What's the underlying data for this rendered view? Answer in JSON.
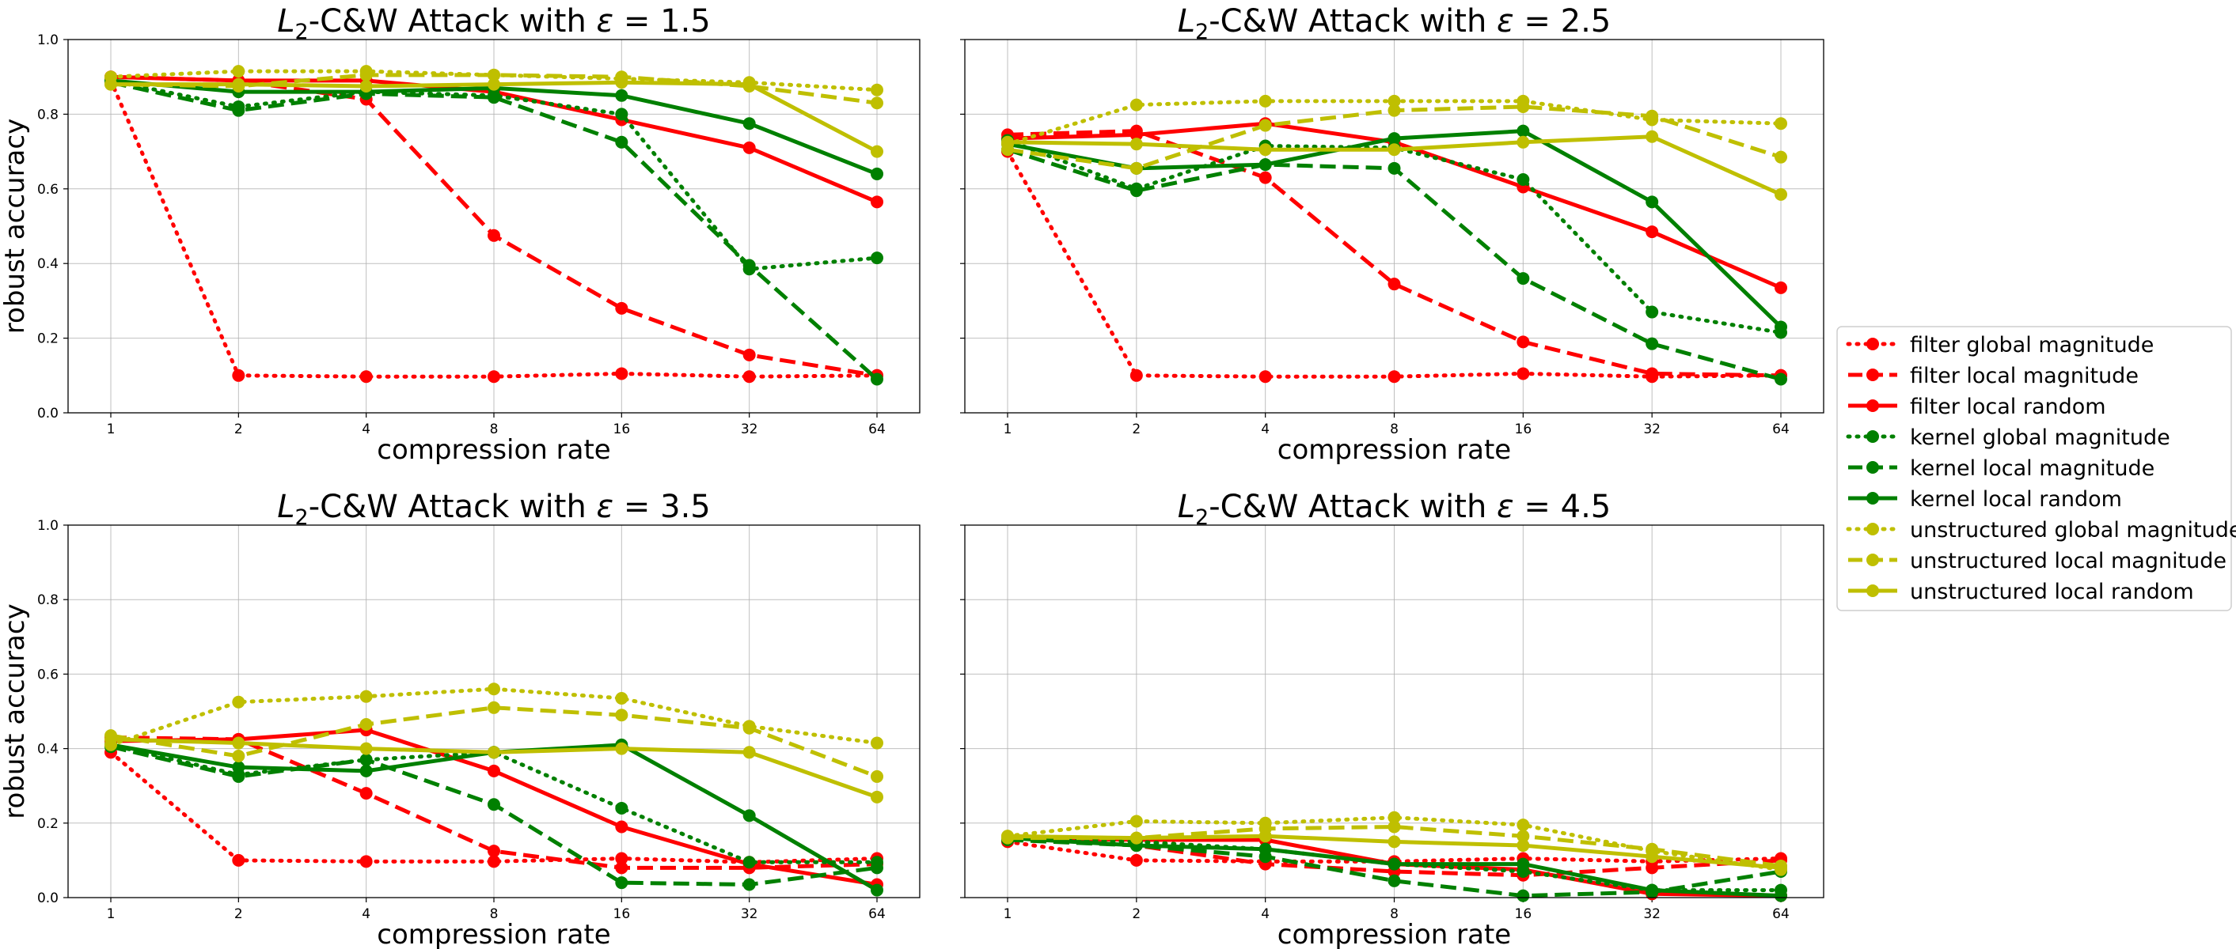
{
  "figure": {
    "ylabel": "robust accuracy",
    "xlabel": "compression rate"
  },
  "legend": {
    "placement": "center-right",
    "entries": [
      {
        "label": "filter global magnitude",
        "color": "#ff0000",
        "style": "dotted"
      },
      {
        "label": "filter local magnitude",
        "color": "#ff0000",
        "style": "dashed"
      },
      {
        "label": "filter local random",
        "color": "#ff0000",
        "style": "solid"
      },
      {
        "label": "kernel global magnitude",
        "color": "#008000",
        "style": "dotted"
      },
      {
        "label": "kernel local magnitude",
        "color": "#008000",
        "style": "dashed"
      },
      {
        "label": "kernel local random",
        "color": "#008000",
        "style": "solid"
      },
      {
        "label": "unstructured global magnitude",
        "color": "#bfbf00",
        "style": "dotted"
      },
      {
        "label": "unstructured local magnitude",
        "color": "#bfbf00",
        "style": "dashed"
      },
      {
        "label": "unstructured local random",
        "color": "#bfbf00",
        "style": "solid"
      }
    ]
  },
  "chart_data": [
    {
      "type": "line",
      "title_prefix": "L",
      "title_sub": "2",
      "title_rest": "-C&W Attack with ",
      "title_eps": "ε",
      "title_value": " = 1.5",
      "x": [
        1,
        2,
        4,
        8,
        16,
        32,
        64
      ],
      "x_tick_labels": [
        "1",
        "2",
        "4",
        "8",
        "16",
        "32",
        "64"
      ],
      "xscale": "log2",
      "ylim": [
        0.0,
        1.0
      ],
      "y_tick_labels": [
        "0.0",
        "0.2",
        "0.4",
        "0.6",
        "0.8",
        "1.0"
      ],
      "grid": true,
      "series": [
        {
          "name": "filter global magnitude",
          "values": [
            0.89,
            0.1,
            0.097,
            0.097,
            0.105,
            0.097,
            0.1
          ]
        },
        {
          "name": "filter local magnitude",
          "values": [
            0.9,
            0.89,
            0.84,
            0.475,
            0.28,
            0.155,
            0.1
          ]
        },
        {
          "name": "filter local random",
          "values": [
            0.9,
            0.89,
            0.89,
            0.86,
            0.785,
            0.71,
            0.565
          ]
        },
        {
          "name": "kernel global magnitude",
          "values": [
            0.89,
            0.82,
            0.86,
            0.85,
            0.8,
            0.385,
            0.415
          ]
        },
        {
          "name": "kernel local magnitude",
          "values": [
            0.885,
            0.81,
            0.855,
            0.845,
            0.725,
            0.395,
            0.09
          ]
        },
        {
          "name": "kernel local random",
          "values": [
            0.89,
            0.86,
            0.86,
            0.87,
            0.85,
            0.775,
            0.64
          ]
        },
        {
          "name": "unstructured global magnitude",
          "values": [
            0.9,
            0.915,
            0.915,
            0.905,
            0.895,
            0.885,
            0.865
          ]
        },
        {
          "name": "unstructured local magnitude",
          "values": [
            0.88,
            0.875,
            0.905,
            0.905,
            0.9,
            0.875,
            0.83
          ]
        },
        {
          "name": "unstructured local random",
          "values": [
            0.88,
            0.88,
            0.875,
            0.88,
            0.885,
            0.88,
            0.7
          ]
        }
      ]
    },
    {
      "type": "line",
      "title_prefix": "L",
      "title_sub": "2",
      "title_rest": "-C&W Attack with ",
      "title_eps": "ε",
      "title_value": " = 2.5",
      "x": [
        1,
        2,
        4,
        8,
        16,
        32,
        64
      ],
      "x_tick_labels": [
        "1",
        "2",
        "4",
        "8",
        "16",
        "32",
        "64"
      ],
      "xscale": "log2",
      "ylim": [
        0.0,
        1.0
      ],
      "y_tick_labels": [
        "0.0",
        "0.2",
        "0.4",
        "0.6",
        "0.8",
        "1.0"
      ],
      "grid": true,
      "series": [
        {
          "name": "filter global magnitude",
          "values": [
            0.7,
            0.1,
            0.097,
            0.097,
            0.105,
            0.097,
            0.1
          ]
        },
        {
          "name": "filter local magnitude",
          "values": [
            0.745,
            0.755,
            0.63,
            0.345,
            0.19,
            0.105,
            0.1
          ]
        },
        {
          "name": "filter local random",
          "values": [
            0.735,
            0.745,
            0.775,
            0.725,
            0.605,
            0.485,
            0.335
          ]
        },
        {
          "name": "kernel global magnitude",
          "values": [
            0.73,
            0.6,
            0.715,
            0.71,
            0.625,
            0.27,
            0.215
          ]
        },
        {
          "name": "kernel local magnitude",
          "values": [
            0.705,
            0.595,
            0.665,
            0.655,
            0.36,
            0.185,
            0.09
          ]
        },
        {
          "name": "kernel local random",
          "values": [
            0.72,
            0.655,
            0.665,
            0.735,
            0.755,
            0.565,
            0.23
          ]
        },
        {
          "name": "unstructured global magnitude",
          "values": [
            0.72,
            0.825,
            0.835,
            0.835,
            0.835,
            0.785,
            0.775
          ]
        },
        {
          "name": "unstructured local magnitude",
          "values": [
            0.705,
            0.655,
            0.77,
            0.81,
            0.82,
            0.795,
            0.685
          ]
        },
        {
          "name": "unstructured local random",
          "values": [
            0.725,
            0.72,
            0.705,
            0.705,
            0.725,
            0.74,
            0.585
          ]
        }
      ]
    },
    {
      "type": "line",
      "title_prefix": "L",
      "title_sub": "2",
      "title_rest": "-C&W Attack with ",
      "title_eps": "ε",
      "title_value": " = 3.5",
      "x": [
        1,
        2,
        4,
        8,
        16,
        32,
        64
      ],
      "x_tick_labels": [
        "1",
        "2",
        "4",
        "8",
        "16",
        "32",
        "64"
      ],
      "xscale": "log2",
      "ylim": [
        0.0,
        1.0
      ],
      "y_tick_labels": [
        "0.0",
        "0.2",
        "0.4",
        "0.6",
        "0.8",
        "1.0"
      ],
      "grid": true,
      "series": [
        {
          "name": "filter global magnitude",
          "values": [
            0.39,
            0.1,
            0.097,
            0.097,
            0.105,
            0.095,
            0.105
          ]
        },
        {
          "name": "filter local magnitude",
          "values": [
            0.43,
            0.425,
            0.28,
            0.125,
            0.08,
            0.08,
            0.09
          ]
        },
        {
          "name": "filter local random",
          "values": [
            0.42,
            0.425,
            0.45,
            0.34,
            0.19,
            0.09,
            0.035
          ]
        },
        {
          "name": "kernel global magnitude",
          "values": [
            0.41,
            0.33,
            0.37,
            0.39,
            0.24,
            0.095,
            0.095
          ]
        },
        {
          "name": "kernel local magnitude",
          "values": [
            0.405,
            0.325,
            0.37,
            0.25,
            0.04,
            0.035,
            0.08
          ]
        },
        {
          "name": "kernel local random",
          "values": [
            0.41,
            0.35,
            0.34,
            0.39,
            0.41,
            0.22,
            0.02
          ]
        },
        {
          "name": "unstructured global magnitude",
          "values": [
            0.41,
            0.525,
            0.54,
            0.56,
            0.535,
            0.46,
            0.415
          ]
        },
        {
          "name": "unstructured local magnitude",
          "values": [
            0.435,
            0.38,
            0.465,
            0.51,
            0.49,
            0.455,
            0.325
          ]
        },
        {
          "name": "unstructured local random",
          "values": [
            0.425,
            0.415,
            0.4,
            0.39,
            0.4,
            0.39,
            0.27
          ]
        }
      ]
    },
    {
      "type": "line",
      "title_prefix": "L",
      "title_sub": "2",
      "title_rest": "-C&W Attack with ",
      "title_eps": "ε",
      "title_value": " = 4.5",
      "x": [
        1,
        2,
        4,
        8,
        16,
        32,
        64
      ],
      "x_tick_labels": [
        "1",
        "2",
        "4",
        "8",
        "16",
        "32",
        "64"
      ],
      "xscale": "log2",
      "ylim": [
        0.0,
        1.0
      ],
      "y_tick_labels": [
        "0.0",
        "0.2",
        "0.4",
        "0.6",
        "0.8",
        "1.0"
      ],
      "grid": true,
      "series": [
        {
          "name": "filter global magnitude",
          "values": [
            0.15,
            0.1,
            0.097,
            0.097,
            0.105,
            0.097,
            0.105
          ]
        },
        {
          "name": "filter local magnitude",
          "values": [
            0.16,
            0.14,
            0.09,
            0.07,
            0.06,
            0.08,
            0.1
          ]
        },
        {
          "name": "filter local random",
          "values": [
            0.16,
            0.155,
            0.155,
            0.09,
            0.075,
            0.01,
            0.005
          ]
        },
        {
          "name": "kernel global magnitude",
          "values": [
            0.16,
            0.15,
            0.13,
            0.09,
            0.07,
            0.02,
            0.02
          ]
        },
        {
          "name": "kernel local magnitude",
          "values": [
            0.155,
            0.14,
            0.11,
            0.045,
            0.005,
            0.015,
            0.07
          ]
        },
        {
          "name": "kernel local random",
          "values": [
            0.16,
            0.14,
            0.13,
            0.09,
            0.09,
            0.02,
            0.005
          ]
        },
        {
          "name": "unstructured global magnitude",
          "values": [
            0.165,
            0.205,
            0.2,
            0.215,
            0.195,
            0.125,
            0.075
          ]
        },
        {
          "name": "unstructured local magnitude",
          "values": [
            0.16,
            0.16,
            0.185,
            0.19,
            0.165,
            0.13,
            0.085
          ]
        },
        {
          "name": "unstructured local random",
          "values": [
            0.165,
            0.16,
            0.165,
            0.15,
            0.14,
            0.11,
            0.08
          ]
        }
      ]
    }
  ]
}
